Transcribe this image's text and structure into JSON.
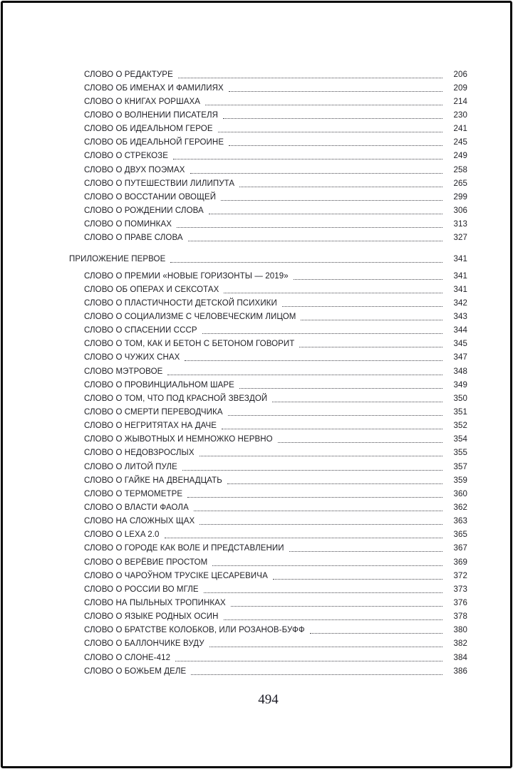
{
  "toc": {
    "part1": [
      {
        "title": "СЛОВО О РЕДАКТУРЕ",
        "page": "206"
      },
      {
        "title": "СЛОВО ОБ ИМЕНАХ И ФАМИЛИЯХ",
        "page": "209"
      },
      {
        "title": "СЛОВО О КНИГАХ РОРШАХА",
        "page": "214"
      },
      {
        "title": "СЛОВО О ВОЛНЕНИИ ПИСАТЕЛЯ",
        "page": "230"
      },
      {
        "title": "СЛОВО ОБ ИДЕАЛЬНОМ ГЕРОЕ",
        "page": "241"
      },
      {
        "title": "СЛОВО ОБ ИДЕАЛЬНОЙ ГЕРОИНЕ",
        "page": "245"
      },
      {
        "title": "СЛОВО О СТРЕКОЗЕ",
        "page": "249"
      },
      {
        "title": "СЛОВО О ДВУХ ПОЭМАХ",
        "page": "258"
      },
      {
        "title": "СЛОВО О ПУТЕШЕСТВИИ ЛИЛИПУТА",
        "page": "265"
      },
      {
        "title": "СЛОВО О ВОССТАНИИ ОВОЩЕЙ",
        "page": "299"
      },
      {
        "title": "СЛОВО О РОЖДЕНИИ СЛОВА",
        "page": "306"
      },
      {
        "title": "СЛОВО О ПОМИНКАХ",
        "page": "313"
      },
      {
        "title": "СЛОВО О ПРАВЕ СЛОВА",
        "page": "327"
      }
    ],
    "appendix_header": {
      "title": "ПРИЛОЖЕНИЕ ПЕРВОЕ",
      "page": "341"
    },
    "appendix_items": [
      {
        "title": "СЛОВО О ПРЕМИИ «НОВЫЕ ГОРИЗОНТЫ — 2019»",
        "page": "341"
      },
      {
        "title": "СЛОВО ОБ ОПЕРАХ И СЕКСОТАХ",
        "page": "341"
      },
      {
        "title": "СЛОВО О ПЛАСТИЧНОСТИ ДЕТСКОЙ ПСИХИКИ",
        "page": "342"
      },
      {
        "title": "СЛОВО О СОЦИАЛИЗМЕ С ЧЕЛОВЕЧЕСКИМ ЛИЦОМ",
        "page": "343"
      },
      {
        "title": "СЛОВО О СПАСЕНИИ СССР",
        "page": "344"
      },
      {
        "title": "СЛОВО О ТОМ, КАК И БЕТОН С БЕТОНОМ ГОВОРИТ",
        "page": "345"
      },
      {
        "title": "СЛОВО О ЧУЖИХ СНАХ",
        "page": "347"
      },
      {
        "title": "СЛОВО МЭТРОВОЕ",
        "page": "348"
      },
      {
        "title": "СЛОВО О ПРОВИНЦИАЛЬНОМ ШАРЕ",
        "page": "349"
      },
      {
        "title": "СЛОВО О ТОМ, ЧТО ПОД КРАСНОЙ ЗВЕЗДОЙ",
        "page": "350"
      },
      {
        "title": "СЛОВО О СМЕРТИ ПЕРЕВОДЧИКА",
        "page": "351"
      },
      {
        "title": "СЛОВО О НЕГРИТЯТАХ НА ДАЧЕ",
        "page": "352"
      },
      {
        "title": "СЛОВО О ЖЫВОТНЫХ И НЕМНОЖКО НЕРВНО",
        "page": "354"
      },
      {
        "title": "СЛОВО О НЕДОВЗРОСЛЫХ",
        "page": "355"
      },
      {
        "title": "СЛОВО О ЛИТОЙ ПУЛЕ",
        "page": "357"
      },
      {
        "title": "СЛОВО О ГАЙКЕ НА ДВЕНАДЦАТЬ",
        "page": "359"
      },
      {
        "title": "СЛОВО О ТЕРМОМЕТРЕ",
        "page": "360"
      },
      {
        "title": "СЛОВО О ВЛАСТИ ФАОЛА",
        "page": "362"
      },
      {
        "title": "СЛОВО НА СЛОЖНЫХ ЩАХ",
        "page": "363"
      },
      {
        "title": "СЛОВО О LEXA 2.0",
        "page": "365"
      },
      {
        "title": "СЛОВО О ГОРОДЕ КАК ВОЛЕ И ПРЕДСТАВЛЕНИИ",
        "page": "367"
      },
      {
        "title": "СЛОВО О ВЕРЁВИЕ ПРОСТОМ",
        "page": "369"
      },
      {
        "title": "СЛОВО О ЧАРОЎНОМ ТРУСІКЕ ЦЕСАРЕВИЧА",
        "page": "372"
      },
      {
        "title": "СЛОВО О РОССИИ ВО МГЛЕ",
        "page": "373"
      },
      {
        "title": "СЛОВО НА ПЫЛЬНЫХ ТРОПИНКАХ",
        "page": "376"
      },
      {
        "title": "СЛОВО О ЯЗЫКЕ РОДНЫХ ОСИН",
        "page": "378"
      },
      {
        "title": "СЛОВО О БРАТСТВЕ КОЛОБКОВ, ИЛИ РОЗАНОВ-БУФФ",
        "page": "380"
      },
      {
        "title": "СЛОВО О БАЛЛОНЧИКЕ ВУДУ",
        "page": "382"
      },
      {
        "title": "СЛОВО О СЛОНЕ-412",
        "page": "384"
      },
      {
        "title": "СЛОВО О БОЖЬЕМ ДЕЛЕ",
        "page": "386"
      }
    ]
  },
  "footer": {
    "page_number": "494"
  },
  "colors": {
    "text": "#1e1e24",
    "leader_dots": "#45454c",
    "frame": "#070707"
  }
}
